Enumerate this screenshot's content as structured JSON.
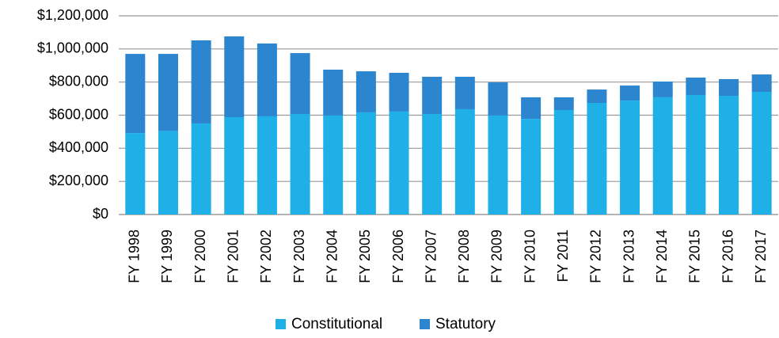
{
  "chart_data": {
    "type": "stacked_bar",
    "categories": [
      "FY 1998",
      "FY 1999",
      "FY 2000",
      "FY 2001",
      "FY 2002",
      "FY 2003",
      "FY 2004",
      "FY 2005",
      "FY 2006",
      "FY 2007",
      "FY 2008",
      "FY 2009",
      "FY 2010",
      "FY 2011",
      "FY 2012",
      "FY 2013",
      "FY 2014",
      "FY 2015",
      "FY 2016",
      "FY 2017"
    ],
    "series": [
      {
        "name": "Constitutional",
        "color": "#1eb0e6",
        "values": [
          492000,
          505000,
          550000,
          588000,
          593000,
          607000,
          598000,
          617000,
          622000,
          607000,
          636000,
          598000,
          578000,
          631000,
          674000,
          688000,
          708000,
          722000,
          717000,
          741000
        ]
      },
      {
        "name": "Statutory",
        "color": "#2b86cf",
        "values": [
          478000,
          465000,
          502000,
          488000,
          440000,
          368000,
          277000,
          248000,
          234000,
          225000,
          196000,
          200000,
          130000,
          77000,
          81000,
          91000,
          95000,
          105000,
          101000,
          105000
        ]
      }
    ],
    "ylim": [
      0,
      1200000
    ],
    "yticks": [
      {
        "value": 0,
        "label": "$0"
      },
      {
        "value": 200000,
        "label": "$200,000"
      },
      {
        "value": 400000,
        "label": "$400,000"
      },
      {
        "value": 600000,
        "label": "$600,000"
      },
      {
        "value": 800000,
        "label": "$800,000"
      },
      {
        "value": 1000000,
        "label": "$1,000,000"
      },
      {
        "value": 1200000,
        "label": "$1,200,000"
      }
    ],
    "grid": true,
    "legend": "bottom"
  }
}
